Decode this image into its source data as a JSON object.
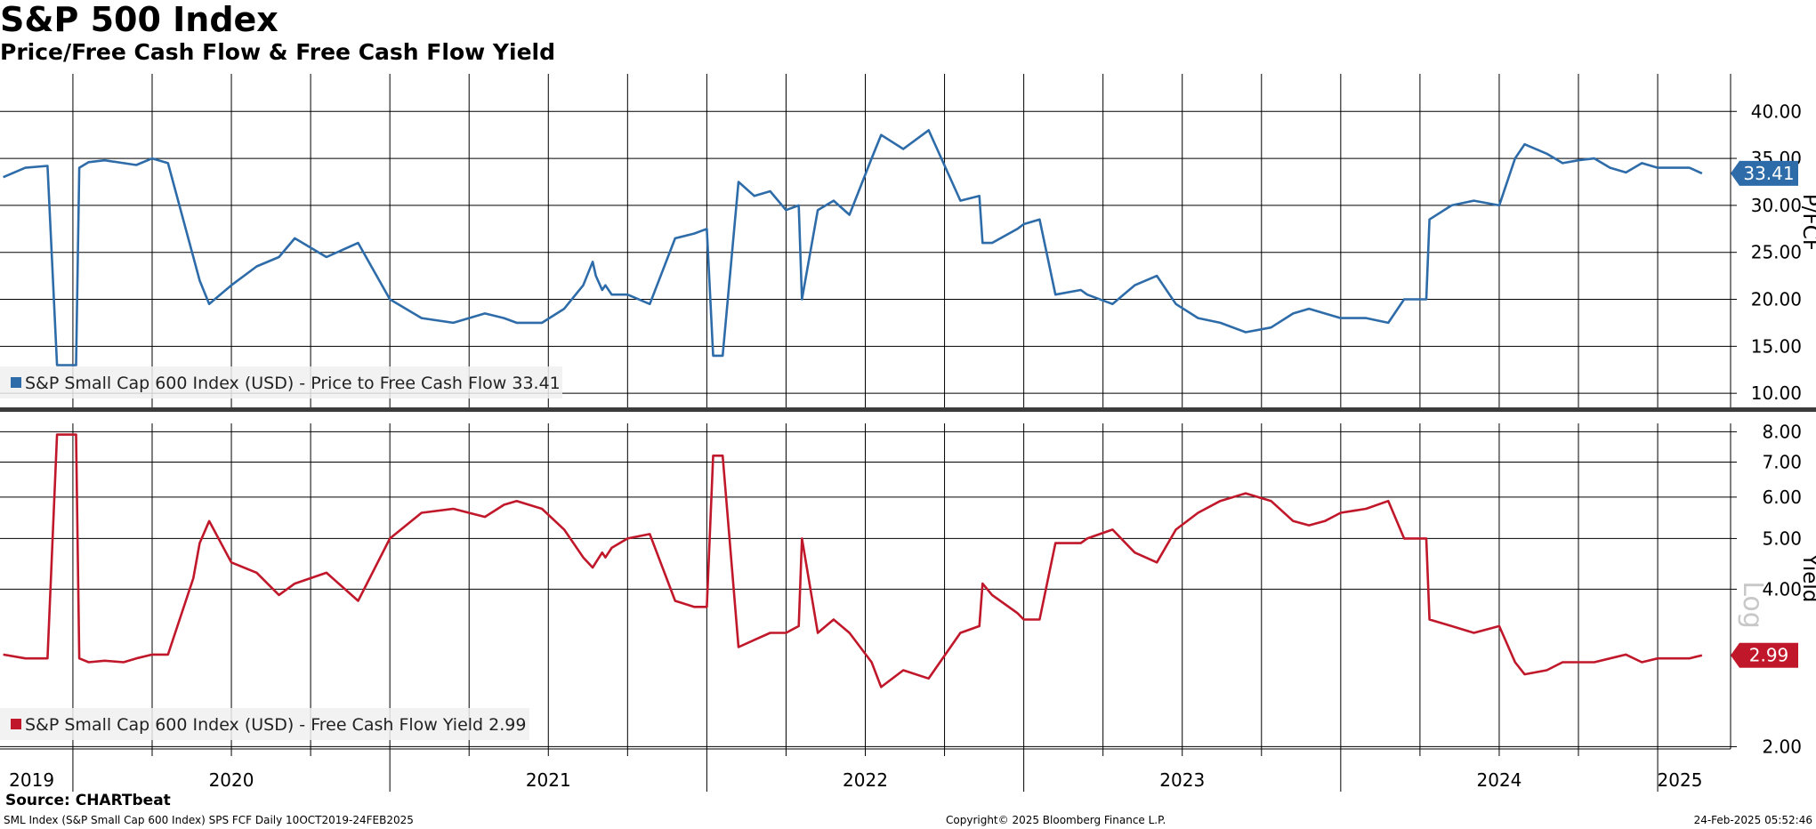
{
  "header": {
    "title": "S&P 500 Index",
    "subtitle": "Price/Free Cash Flow & Free Cash Flow Yield"
  },
  "footer": {
    "source": "Source: CHARTbeat",
    "left": "SML Index (S&P Small Cap 600 Index) SPS FCF  Daily 10OCT2019-24FEB2025",
    "center": "Copyright© 2025 Bloomberg Finance L.P.",
    "right": "24-Feb-2025 05:52:46"
  },
  "colors": {
    "pfcf": "#2e6ca9",
    "yield": "#c0182a",
    "divider": "#3c3c3c",
    "grid": "#000000"
  },
  "chart_data": [
    {
      "type": "line",
      "ylabel": "P/FCF",
      "ylim": [
        8.5,
        44
      ],
      "yticks": [
        "10.00",
        "15.00",
        "20.00",
        "25.00",
        "30.00",
        "35.00",
        "40.00"
      ],
      "last_value_label": "33.41",
      "grid": true,
      "legend_position": "bottom-left",
      "series": [
        {
          "name": "S&P Small Cap 600 Index (USD) - Price to Free Cash Flow 33.41",
          "x": [
            2019.78,
            2019.85,
            2019.92,
            2019.95,
            2019.96,
            2020.01,
            2020.02,
            2020.05,
            2020.1,
            2020.16,
            2020.2,
            2020.25,
            2020.3,
            2020.38,
            2020.4,
            2020.43,
            2020.5,
            2020.58,
            2020.65,
            2020.7,
            2020.8,
            2020.9,
            2021.0,
            2021.1,
            2021.2,
            2021.3,
            2021.36,
            2021.4,
            2021.48,
            2021.55,
            2021.61,
            2021.64,
            2021.65,
            2021.67,
            2021.68,
            2021.7,
            2021.75,
            2021.82,
            2021.9,
            2021.96,
            2022.0,
            2022.02,
            2022.05,
            2022.1,
            2022.15,
            2022.2,
            2022.25,
            2022.29,
            2022.3,
            2022.35,
            2022.4,
            2022.45,
            2022.52,
            2022.55,
            2022.62,
            2022.7,
            2022.8,
            2022.86,
            2022.87,
            2022.9,
            2022.98,
            2023.0,
            2023.05,
            2023.1,
            2023.18,
            2023.2,
            2023.28,
            2023.35,
            2023.42,
            2023.48,
            2023.55,
            2023.62,
            2023.7,
            2023.78,
            2023.85,
            2023.9,
            2023.95,
            2024.0,
            2024.08,
            2024.15,
            2024.2,
            2024.27,
            2024.28,
            2024.35,
            2024.42,
            2024.5,
            2024.55,
            2024.58,
            2024.65,
            2024.7,
            2024.75,
            2024.8,
            2024.85,
            2024.9,
            2024.95,
            2025.0,
            2025.1,
            2025.14
          ],
          "values": [
            33.0,
            34.0,
            34.2,
            13.0,
            13.0,
            13.0,
            34.0,
            34.6,
            34.8,
            34.5,
            34.3,
            35.0,
            34.5,
            24.5,
            22.0,
            19.5,
            21.5,
            23.5,
            24.5,
            26.5,
            24.5,
            26.0,
            20.0,
            18.0,
            17.5,
            18.5,
            18.0,
            17.5,
            17.5,
            19.0,
            21.5,
            24.0,
            22.5,
            21.0,
            21.5,
            20.5,
            20.5,
            19.5,
            26.5,
            27.0,
            27.5,
            14.0,
            14.0,
            32.5,
            31.0,
            31.5,
            29.5,
            30.0,
            20.0,
            29.5,
            30.5,
            29.0,
            35.0,
            37.5,
            36.0,
            38.0,
            30.5,
            31.0,
            26.0,
            26.0,
            27.5,
            28.0,
            28.5,
            20.5,
            21.0,
            20.5,
            19.5,
            21.5,
            22.5,
            19.5,
            18.0,
            17.5,
            16.5,
            17.0,
            18.5,
            19.0,
            18.5,
            18.0,
            18.0,
            17.5,
            20.0,
            20.0,
            28.5,
            30.0,
            30.5,
            30.0,
            35.0,
            36.5,
            35.5,
            34.5,
            34.8,
            35.0,
            34.0,
            33.5,
            34.5,
            34.0,
            34.0,
            33.41
          ]
        }
      ]
    },
    {
      "type": "line",
      "ylabel": "Yield",
      "scale": "log",
      "ylim": [
        1.98,
        8.3
      ],
      "yticks": [
        "2.00",
        "4.00",
        "5.00",
        "6.00",
        "7.00",
        "8.00"
      ],
      "last_value_label": "2.99",
      "grid": true,
      "legend_position": "bottom-left",
      "series": [
        {
          "name": "S&P Small Cap 600 Index (USD) - Free Cash Flow Yield 2.99",
          "x": [
            2019.78,
            2019.85,
            2019.92,
            2019.95,
            2019.96,
            2020.01,
            2020.02,
            2020.05,
            2020.1,
            2020.16,
            2020.2,
            2020.25,
            2020.3,
            2020.38,
            2020.4,
            2020.43,
            2020.5,
            2020.58,
            2020.65,
            2020.7,
            2020.8,
            2020.9,
            2021.0,
            2021.1,
            2021.2,
            2021.3,
            2021.36,
            2021.4,
            2021.48,
            2021.55,
            2021.61,
            2021.64,
            2021.65,
            2021.67,
            2021.68,
            2021.7,
            2021.75,
            2021.82,
            2021.9,
            2021.96,
            2022.0,
            2022.02,
            2022.05,
            2022.1,
            2022.15,
            2022.2,
            2022.25,
            2022.29,
            2022.3,
            2022.35,
            2022.4,
            2022.45,
            2022.52,
            2022.55,
            2022.62,
            2022.7,
            2022.8,
            2022.86,
            2022.87,
            2022.9,
            2022.98,
            2023.0,
            2023.05,
            2023.1,
            2023.18,
            2023.2,
            2023.28,
            2023.35,
            2023.42,
            2023.48,
            2023.55,
            2023.62,
            2023.7,
            2023.78,
            2023.85,
            2023.9,
            2023.95,
            2024.0,
            2024.08,
            2024.15,
            2024.2,
            2024.27,
            2024.28,
            2024.35,
            2024.42,
            2024.5,
            2024.55,
            2024.58,
            2024.65,
            2024.7,
            2024.75,
            2024.8,
            2024.85,
            2024.9,
            2024.95,
            2025.0,
            2025.1,
            2025.14
          ],
          "values": [
            3.0,
            2.95,
            2.95,
            7.9,
            7.9,
            7.9,
            2.95,
            2.9,
            2.92,
            2.9,
            2.95,
            3.0,
            3.0,
            4.2,
            4.9,
            5.4,
            4.5,
            4.3,
            3.9,
            4.1,
            4.3,
            3.8,
            5.0,
            5.6,
            5.7,
            5.5,
            5.8,
            5.9,
            5.7,
            5.2,
            4.6,
            4.4,
            4.5,
            4.7,
            4.6,
            4.8,
            5.0,
            5.1,
            3.8,
            3.7,
            3.7,
            7.2,
            7.2,
            3.1,
            3.2,
            3.3,
            3.3,
            3.4,
            5.0,
            3.3,
            3.5,
            3.3,
            2.9,
            2.6,
            2.8,
            2.7,
            3.3,
            3.4,
            4.1,
            3.9,
            3.6,
            3.5,
            3.5,
            4.9,
            4.9,
            5.0,
            5.2,
            4.7,
            4.5,
            5.2,
            5.6,
            5.9,
            6.1,
            5.9,
            5.4,
            5.3,
            5.4,
            5.6,
            5.7,
            5.9,
            5.0,
            5.0,
            3.5,
            3.4,
            3.3,
            3.4,
            2.9,
            2.75,
            2.8,
            2.9,
            2.9,
            2.9,
            2.95,
            3.0,
            2.9,
            2.95,
            2.95,
            2.99
          ]
        }
      ]
    }
  ],
  "x_axis": {
    "year_labels": [
      {
        "label": "2019",
        "x": 2019.87
      },
      {
        "label": "2020",
        "x": 2020.5
      },
      {
        "label": "2021",
        "x": 2021.5
      },
      {
        "label": "2022",
        "x": 2022.5
      },
      {
        "label": "2023",
        "x": 2023.5
      },
      {
        "label": "2024",
        "x": 2024.5
      },
      {
        "label": "2025",
        "x": 2025.07
      }
    ],
    "xlim": [
      2019.77,
      2025.23
    ]
  }
}
